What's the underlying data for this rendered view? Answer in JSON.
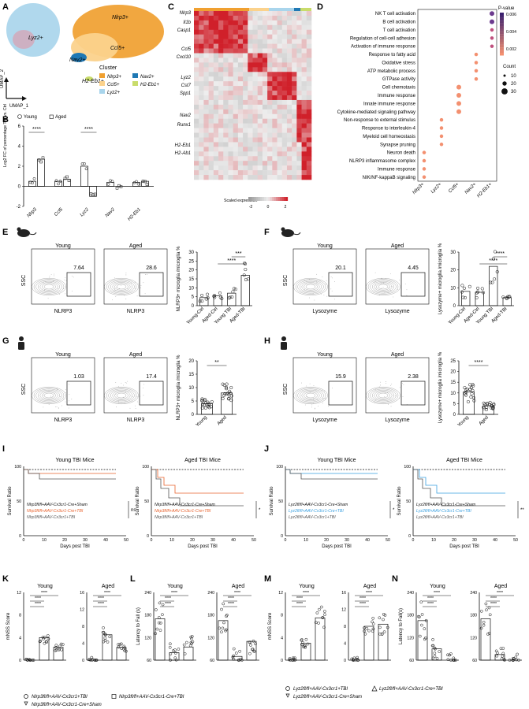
{
  "panels": [
    "A",
    "B",
    "C",
    "D",
    "E",
    "F",
    "G",
    "H",
    "I",
    "J",
    "K",
    "L",
    "M",
    "N"
  ],
  "A": {
    "clusters": [
      {
        "label": "Nlrp3+",
        "color": "#f0a030"
      },
      {
        "label": "Ccl5+",
        "color": "#fbd28c"
      },
      {
        "label": "Lyz2+",
        "color": "#a9d5ec"
      },
      {
        "label": "Nav2+",
        "color": "#1f78b4"
      },
      {
        "label": "H2-Eb1+",
        "color": "#c9dc6b"
      }
    ],
    "legend_title": "Cluster",
    "axis_x": "UMAP_1",
    "axis_y": "UMAP_2"
  },
  "chart_data": [
    {
      "panel": "B",
      "type": "bar",
      "ylabel": "Log2 FC of percentage TBI vs. Ctrl",
      "categories": [
        "Nlrp3",
        "Ccl5",
        "Lyz2",
        "Nav2",
        "H2-Eb1"
      ],
      "series": [
        {
          "name": "Young",
          "values": [
            0.5,
            0.5,
            2.0,
            0.4,
            0.4
          ]
        },
        {
          "name": "Aged",
          "values": [
            2.7,
            0.7,
            -1.0,
            0.0,
            0.5
          ]
        }
      ],
      "ylim": [
        -2,
        6
      ],
      "yticks": [
        -2,
        0,
        2,
        4,
        6
      ],
      "sig": [
        {
          "categories": "Nlrp3",
          "label": "****"
        },
        {
          "categories": "Lyz2",
          "label": "****"
        }
      ]
    },
    {
      "panel": "C",
      "type": "heatmap",
      "genes": [
        "Nlrp3",
        "Il1b",
        "Casp1",
        "Ccl5",
        "Cxcl10",
        "Lyz2",
        "Cst7",
        "Spp1",
        "Nav2",
        "Runx1",
        "H2-Eb1",
        "H2-Ab1"
      ],
      "colorbar_label": "Scaled expression",
      "colorbar_ticks": [
        "-2",
        "0",
        "2"
      ]
    },
    {
      "panel": "D",
      "type": "scatter",
      "terms": [
        "NK T cell activation",
        "B cell activation",
        "T cell activation",
        "Regulation of cell-cell adhesion",
        "Activation of immune response",
        "Response to fatty acid",
        "Oxidative stress",
        "ATP metabolic process",
        "GTPase activity",
        "Cell chemotaxis",
        "Immune response",
        "Innate immune response",
        "Cytokine-mediated signaling pathway",
        "Non-response to external stimulus",
        "Response to interleukin-4",
        "Myeloid cell homeostasis",
        "Synapse pruning",
        "Neuron death",
        "NLRP3 inflammasome complex",
        "Immune response",
        "NIK/NF-kappaB signaling"
      ],
      "clusters": [
        "Nlrp3+",
        "Lyz2+",
        "Ccl5+",
        "Nav2+",
        "H2-Eb1+"
      ],
      "pvalue_label": "P-value",
      "pvalue_ticks": [
        "0.006",
        "0.004",
        "0.002"
      ],
      "count_label": "Count",
      "count_values": [
        10,
        20,
        30
      ]
    },
    {
      "panel": "E",
      "type": "bar",
      "ylabel": "NLRP3+ microglia /microglia %",
      "categories": [
        "Young-Ctrl",
        "Aged-Ctrl",
        "Young TBI",
        "Aged-TBI"
      ],
      "values": [
        4.5,
        5.5,
        7.0,
        17.0
      ],
      "ylim": [
        0,
        30
      ],
      "yticks": [
        0,
        5,
        10,
        15,
        20,
        25,
        30
      ],
      "sig": [
        "***",
        "****"
      ]
    },
    {
      "panel": "F",
      "type": "bar",
      "ylabel": "Lysozyme+ microglia /microglia %",
      "categories": [
        "Young-Ctrl",
        "Aged-Ctrl",
        "Young TBI",
        "Aged-TBI"
      ],
      "values": [
        8.0,
        7.5,
        22.0,
        4.5
      ],
      "ylim": [
        0,
        30
      ],
      "yticks": [
        0,
        10,
        20,
        30
      ],
      "sig": [
        "****",
        "****"
      ]
    },
    {
      "panel": "G",
      "type": "bar",
      "ylabel": "NLRP3+ microglia /microglia %",
      "categories": [
        "Young",
        "Aged"
      ],
      "values": [
        4.0,
        8.0
      ],
      "ylim": [
        0,
        20
      ],
      "yticks": [
        0,
        5,
        10,
        15,
        20
      ],
      "sig": [
        "**"
      ]
    },
    {
      "panel": "H",
      "type": "bar",
      "ylabel": "Lysozyme+ microglia /microglia %",
      "categories": [
        "Young",
        "Aged"
      ],
      "values": [
        10.5,
        4.0
      ],
      "ylim": [
        0,
        25
      ],
      "yticks": [
        0,
        5,
        10,
        15,
        20,
        25
      ],
      "sig": [
        "****"
      ]
    },
    {
      "panel": "K",
      "type": "bar",
      "ylabel": "mNSS Score",
      "groups": [
        {
          "title": "Young",
          "values": [
            0,
            4,
            2.3
          ],
          "ylim": [
            0,
            12
          ],
          "yticks": [
            0,
            4,
            8,
            12
          ]
        },
        {
          "title": "Aged",
          "values": [
            0,
            6,
            3
          ],
          "ylim": [
            0,
            16
          ],
          "yticks": [
            0,
            4,
            8,
            12,
            16
          ]
        }
      ]
    },
    {
      "panel": "L",
      "type": "bar",
      "ylabel": "Latency to Fall (s)",
      "groups": [
        {
          "title": "Young",
          "values": [
            170,
            80,
            95
          ],
          "ylim": [
            60,
            240
          ],
          "yticks": [
            60,
            120,
            180,
            240
          ]
        },
        {
          "title": "Aged",
          "values": [
            165,
            70,
            110
          ],
          "ylim": [
            60,
            240
          ],
          "yticks": [
            60,
            120,
            180,
            240
          ]
        }
      ]
    },
    {
      "panel": "M",
      "type": "bar",
      "ylabel": "mNSS Score",
      "groups": [
        {
          "title": "Young",
          "values": [
            0,
            3,
            7.5
          ],
          "ylim": [
            0,
            12
          ],
          "yticks": [
            0,
            4,
            8,
            12
          ]
        },
        {
          "title": "Aged",
          "values": [
            0,
            8,
            8.5
          ],
          "ylim": [
            0,
            16
          ],
          "yticks": [
            0,
            4,
            8,
            12,
            16
          ]
        }
      ]
    },
    {
      "panel": "N",
      "type": "bar",
      "ylabel": "Latency to Fall(s)",
      "groups": [
        {
          "title": "Young",
          "values": [
            165,
            90,
            60
          ],
          "ylim": [
            60,
            240
          ],
          "yticks": [
            60,
            120,
            180,
            240
          ]
        },
        {
          "title": "Aged",
          "values": [
            170,
            75,
            60
          ],
          "ylim": [
            60,
            240
          ],
          "yticks": [
            60,
            120,
            180,
            240
          ]
        }
      ]
    }
  ],
  "flow": {
    "E": {
      "left_title": "Young",
      "right_title": "Aged",
      "left_val": "7.64",
      "right_val": "28.6",
      "xlabel": "NLRP3",
      "ylabel": "SSC"
    },
    "F": {
      "left_title": "Young",
      "right_title": "Aged",
      "left_val": "20.1",
      "right_val": "4.45",
      "xlabel": "Lysozyme",
      "ylabel": "SSC"
    },
    "G": {
      "left_title": "Young",
      "right_title": "Aged",
      "left_val": "1.03",
      "right_val": "17.4",
      "xlabel": "NLRP3",
      "ylabel": "SSC"
    },
    "H": {
      "left_title": "Young",
      "right_title": "Aged",
      "left_val": "15.9",
      "right_val": "2.38",
      "xlabel": "Lysozyme",
      "ylabel": "SSC"
    }
  },
  "survival": {
    "I": {
      "left_title": "Young TBI Mice",
      "right_title": "Aged TBI Mice",
      "ylabel": "Survival Ratio",
      "xlabel": "Days post TBI",
      "legend": [
        "Nlrp3fl/fl+AAV-Cx3cr1-Cre+Sham",
        "Nlrp3fl/fl+AAV-Cx3cr1-Cre+TBI",
        "Nlrp3fl/fl+AAV-Cx3cr1+TBI"
      ],
      "legend_colors": [
        "#111111",
        "#e8612c",
        "#555555"
      ],
      "sig_left": "ns",
      "sig_right": "*"
    },
    "J": {
      "left_title": "Young TBI Mice",
      "right_title": "Aged TBI Mice",
      "ylabel": "Survival Ratio",
      "xlabel": "Days post TBI",
      "legend": [
        "Lyz2fl/fl+AAV-Cx3cr1-Cre+Sham",
        "Lyz2fl/fl+AAV-Cx3cr1-Cre+TBI",
        "Lyz2fl/fl+AAV-Cx3cr1+TBI"
      ],
      "legend_colors": [
        "#111111",
        "#3aa0e0",
        "#555555"
      ],
      "sig_left": "*",
      "sig_right": "**"
    }
  },
  "legend_K": [
    "Nlrp3fl/fl+AAV-Cx3cr1+TBI",
    "Nlrp3fl/fl+AAV-Cx3cr1-Cre+TBI",
    "Nlrp3fl/fl+AAV-Cx3cr1-Cre+Sham"
  ],
  "legend_M": [
    "Lyz2fl/fl+AAV-Cx3cr1+TBI",
    "Lyz2fl/fl+AAV-Cx3cr1-Cre+TBI",
    "Lyz2fl/fl+AAV-Cx3cr1-Cre+Sham"
  ],
  "B_legend": [
    "Young",
    "Aged"
  ]
}
